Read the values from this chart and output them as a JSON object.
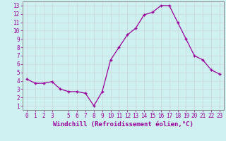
{
  "hours": [
    0,
    1,
    2,
    3,
    4,
    5,
    6,
    7,
    8,
    9,
    10,
    11,
    12,
    13,
    14,
    15,
    16,
    17,
    18,
    19,
    20,
    21,
    22,
    23
  ],
  "values": [
    4.2,
    3.7,
    3.7,
    3.9,
    3.0,
    2.7,
    2.7,
    2.5,
    1.0,
    2.7,
    6.5,
    8.0,
    9.5,
    10.3,
    11.9,
    12.2,
    13.0,
    13.0,
    11.0,
    9.0,
    7.0,
    6.5,
    5.3,
    4.8
  ],
  "line_color": "#990099",
  "marker": "+",
  "bg_color": "#cff0f0",
  "grid_color": "#ccdddd",
  "xlabel": "Windchill (Refroidissement éolien,°C)",
  "xlim": [
    -0.5,
    23.5
  ],
  "ylim": [
    0.5,
    13.5
  ],
  "yticks": [
    1,
    2,
    3,
    4,
    5,
    6,
    7,
    8,
    9,
    10,
    11,
    12,
    13
  ],
  "xticks": [
    0,
    1,
    2,
    3,
    5,
    6,
    7,
    8,
    9,
    10,
    11,
    12,
    13,
    14,
    15,
    16,
    17,
    18,
    19,
    20,
    21,
    22,
    23
  ],
  "tick_color": "#990099",
  "tick_fontsize": 5.5,
  "xlabel_fontsize": 6.5,
  "border_color": "#888888",
  "spine_color": "#888888"
}
